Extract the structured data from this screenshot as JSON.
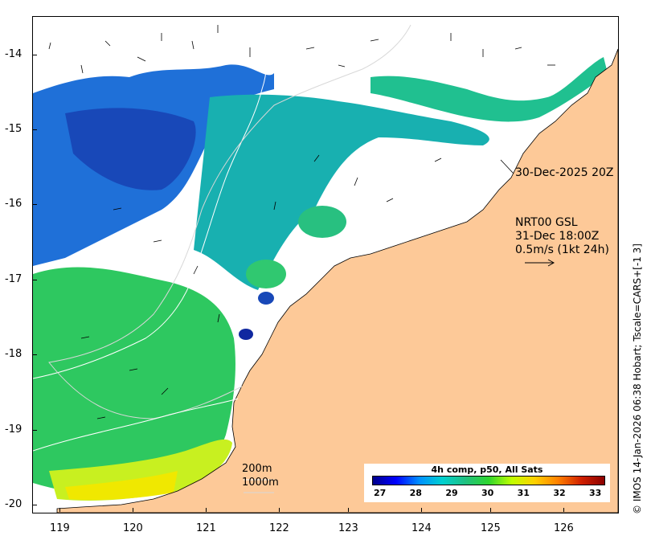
{
  "map": {
    "lat_ticks": [
      "-14",
      "-15",
      "-16",
      "-17",
      "-18",
      "-19",
      "-20"
    ],
    "lon_ticks": [
      "119",
      "120",
      "121",
      "122",
      "123",
      "124",
      "125",
      "126"
    ],
    "land_color": "#fdc998",
    "ocean_color": "#ffffff"
  },
  "annotations": {
    "image_time": "30-Dec-2025 20Z",
    "current_model": "NRT00 GSL",
    "current_time": "31-Dec 18:00Z",
    "vector_scale": "0.5m/s (1kt 24h)",
    "isobath_200": "200m",
    "isobath_1000": "1000m"
  },
  "colorbar": {
    "title": "4h comp, p50, All Sats",
    "ticks": [
      "27",
      "28",
      "29",
      "30",
      "31",
      "32",
      "33"
    ],
    "colors": [
      "#00008b",
      "#0000ff",
      "#0090ff",
      "#00d0d0",
      "#20c080",
      "#2ed52e",
      "#c0ff00",
      "#ffd000",
      "#ff8000",
      "#d02000",
      "#8b0000"
    ]
  },
  "credit": "© IMOS 14-Jan-2026 06:38 Hobart; Tscale=CARS+[-1 3]"
}
